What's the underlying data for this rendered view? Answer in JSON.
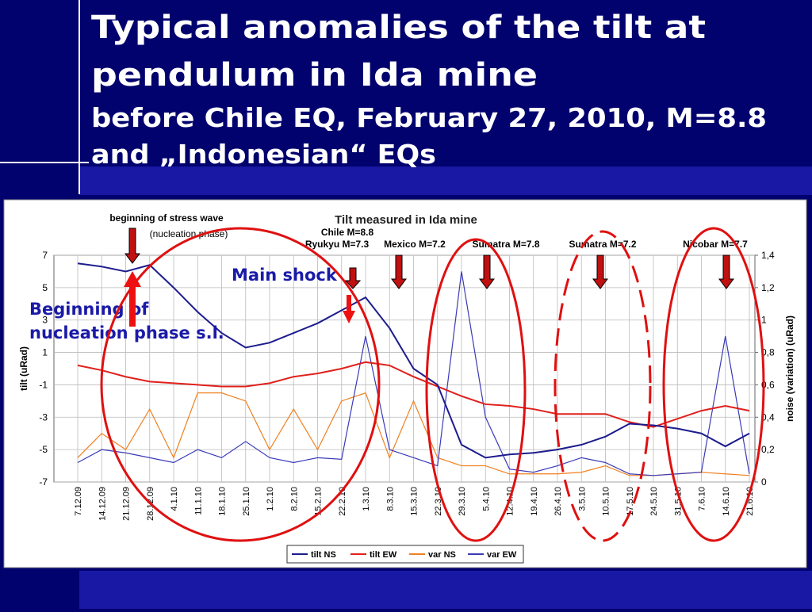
{
  "slide": {
    "title_lines": [
      "Typical anomalies of the tilt at",
      "pendulum in Ida mine"
    ],
    "subtitle_lines": [
      "before Chile EQ, February 27, 2010, M=8.8",
      "and „Indonesian“ EQs"
    ]
  },
  "chart_data": {
    "type": "line",
    "title": "Tilt measured in Ida mine",
    "y_label": "tilt (uRad)",
    "y2_label": "noise (variation) (uRad)",
    "categories": [
      "7.12.09",
      "14.12.09",
      "21.12.09",
      "28.12.09",
      "4.1.10",
      "11.1.10",
      "18.1.10",
      "25.1.10",
      "1.2.10",
      "8.2.10",
      "15.2.10",
      "22.2.10",
      "1.3.10",
      "8.3.10",
      "15.3.10",
      "22.3.10",
      "29.3.10",
      "5.4.10",
      "12.4.10",
      "19.4.10",
      "26.4.10",
      "3.5.10",
      "10.5.10",
      "17.5.10",
      "24.5.10",
      "31.5.10",
      "7.6.10",
      "14.6.10",
      "21.6.10"
    ],
    "series": [
      {
        "name": "tilt NS",
        "color": "#1c1c8e",
        "axis": "y",
        "values": [
          6.5,
          6.3,
          6.0,
          6.4,
          5.0,
          3.5,
          2.2,
          1.3,
          1.6,
          2.2,
          2.8,
          3.6,
          4.4,
          2.5,
          0.0,
          -1.0,
          -4.7,
          -5.5,
          -5.3,
          -5.2,
          -5.0,
          -4.7,
          -4.2,
          -3.4,
          -3.5,
          -3.7,
          -4.0,
          -4.8,
          -4.0
        ]
      },
      {
        "name": "tilt EW",
        "color": "#e0201c",
        "axis": "y",
        "values": [
          0.2,
          -0.1,
          -0.5,
          -0.8,
          -0.9,
          -1.0,
          -1.1,
          -1.1,
          -0.9,
          -0.5,
          -0.3,
          0.0,
          0.4,
          0.2,
          -0.5,
          -1.1,
          -1.7,
          -2.2,
          -2.3,
          -2.5,
          -2.8,
          -2.8,
          -2.8,
          -3.3,
          -3.6,
          -3.1,
          -2.6,
          -2.3,
          -2.6
        ]
      },
      {
        "name": "var NS",
        "color": "#f08020",
        "axis": "y2",
        "values": [
          0.15,
          0.3,
          0.2,
          0.45,
          0.15,
          0.55,
          0.55,
          0.5,
          0.2,
          0.45,
          0.2,
          0.5,
          0.55,
          0.15,
          0.5,
          0.15,
          0.1,
          0.1,
          0.05,
          0.05,
          0.05,
          0.06,
          0.1,
          0.04,
          0.04,
          0.05,
          0.06,
          0.05,
          0.04
        ]
      },
      {
        "name": "var EW",
        "color": "#3a3ab8",
        "axis": "y2",
        "values": [
          0.12,
          0.2,
          0.18,
          0.15,
          0.12,
          0.2,
          0.15,
          0.25,
          0.15,
          0.12,
          0.15,
          0.14,
          0.9,
          0.2,
          0.15,
          0.1,
          1.3,
          0.4,
          0.08,
          0.06,
          0.1,
          0.15,
          0.12,
          0.05,
          0.04,
          0.05,
          0.06,
          0.9,
          0.05
        ]
      }
    ],
    "ylim": [
      -7,
      7
    ],
    "yticks": [
      -7,
      -5,
      -3,
      -1,
      1,
      3,
      5,
      7
    ],
    "y2lim": [
      0,
      1.4
    ],
    "y2ticks": [
      0,
      {
        "value": 0.2,
        "label": "0,2"
      },
      {
        "value": 0.4,
        "label": "0,4"
      },
      {
        "value": 0.6,
        "label": "0,6"
      },
      {
        "value": 0.8,
        "label": "0,8"
      },
      1,
      {
        "value": 1.2,
        "label": "1,2"
      },
      {
        "value": 1.4,
        "label": "1,4"
      }
    ],
    "grid": true,
    "legend": "bottom",
    "annotations": [
      "beginning of stress wave",
      "(nucleation phase)",
      "Chile M=8.8",
      "Ryukyu M=7.3",
      "Mexico M=7.2",
      "Sumatra M=7.8",
      "Sumatra M=7.2",
      "Nicobar M=7.7",
      "Main shock",
      "Beginning of",
      "nucleation phase s.l."
    ]
  }
}
